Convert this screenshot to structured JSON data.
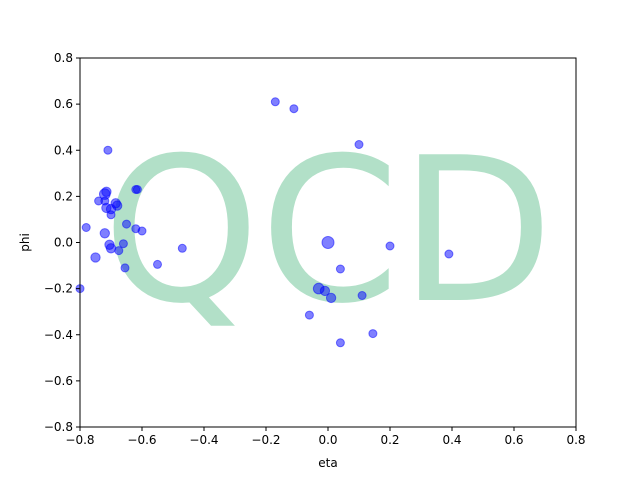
{
  "chart_data": {
    "type": "scatter",
    "title": "",
    "xlabel": "eta",
    "ylabel": "phi",
    "xlim": [
      -0.8,
      0.8
    ],
    "ylim": [
      -0.8,
      0.8
    ],
    "xticks": [
      "−0.8",
      "−0.6",
      "−0.4",
      "−0.2",
      "0.0",
      "0.2",
      "0.4",
      "0.6",
      "0.8"
    ],
    "yticks": [
      "−0.8",
      "−0.6",
      "−0.4",
      "−0.2",
      "0.0",
      "0.2",
      "0.4",
      "0.6",
      "0.8"
    ],
    "grid": false,
    "watermark": "QCD",
    "watermark_color": "#b2e0c8",
    "marker_color": "#0000ff",
    "marker_alpha": 0.5,
    "points": [
      {
        "x": -0.8,
        "y": -0.2,
        "size": 6
      },
      {
        "x": -0.78,
        "y": 0.065,
        "size": 6
      },
      {
        "x": -0.75,
        "y": -0.065,
        "size": 7
      },
      {
        "x": -0.74,
        "y": 0.18,
        "size": 6
      },
      {
        "x": -0.72,
        "y": 0.21,
        "size": 8
      },
      {
        "x": -0.715,
        "y": 0.22,
        "size": 7
      },
      {
        "x": -0.72,
        "y": 0.18,
        "size": 6
      },
      {
        "x": -0.715,
        "y": 0.15,
        "size": 7
      },
      {
        "x": -0.71,
        "y": 0.4,
        "size": 6
      },
      {
        "x": -0.72,
        "y": 0.04,
        "size": 7
      },
      {
        "x": -0.7,
        "y": 0.145,
        "size": 7
      },
      {
        "x": -0.7,
        "y": 0.12,
        "size": 6
      },
      {
        "x": -0.705,
        "y": -0.01,
        "size": 7
      },
      {
        "x": -0.7,
        "y": -0.025,
        "size": 7
      },
      {
        "x": -0.685,
        "y": 0.17,
        "size": 7
      },
      {
        "x": -0.68,
        "y": 0.16,
        "size": 7
      },
      {
        "x": -0.675,
        "y": -0.035,
        "size": 6
      },
      {
        "x": -0.66,
        "y": -0.005,
        "size": 6
      },
      {
        "x": -0.655,
        "y": -0.11,
        "size": 6
      },
      {
        "x": -0.65,
        "y": 0.08,
        "size": 6
      },
      {
        "x": -0.62,
        "y": 0.23,
        "size": 6
      },
      {
        "x": -0.615,
        "y": 0.23,
        "size": 6
      },
      {
        "x": -0.62,
        "y": 0.06,
        "size": 6
      },
      {
        "x": -0.6,
        "y": 0.05,
        "size": 6
      },
      {
        "x": -0.55,
        "y": -0.095,
        "size": 6
      },
      {
        "x": -0.47,
        "y": -0.025,
        "size": 6
      },
      {
        "x": -0.17,
        "y": 0.61,
        "size": 6
      },
      {
        "x": -0.11,
        "y": 0.58,
        "size": 6
      },
      {
        "x": -0.06,
        "y": -0.315,
        "size": 6
      },
      {
        "x": -0.03,
        "y": -0.2,
        "size": 8
      },
      {
        "x": -0.01,
        "y": -0.21,
        "size": 7
      },
      {
        "x": 0.0,
        "y": 0.0,
        "size": 9
      },
      {
        "x": 0.01,
        "y": -0.24,
        "size": 7
      },
      {
        "x": 0.04,
        "y": -0.115,
        "size": 6
      },
      {
        "x": 0.04,
        "y": -0.435,
        "size": 6
      },
      {
        "x": 0.1,
        "y": 0.425,
        "size": 6
      },
      {
        "x": 0.11,
        "y": -0.23,
        "size": 6
      },
      {
        "x": 0.145,
        "y": -0.395,
        "size": 6
      },
      {
        "x": 0.2,
        "y": -0.015,
        "size": 6
      },
      {
        "x": 0.39,
        "y": -0.05,
        "size": 6
      }
    ]
  }
}
